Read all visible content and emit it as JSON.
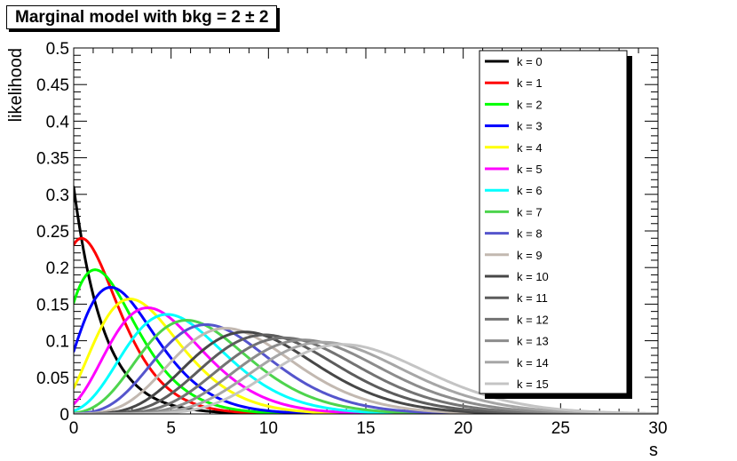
{
  "title": "Marginal model with bkg = 2 ± 2",
  "chart_data": {
    "type": "line",
    "title": "Marginal model with bkg = 2 ± 2",
    "xlabel": "s",
    "ylabel": "likelihood",
    "xlim": [
      0,
      30
    ],
    "ylim": [
      0,
      0.5
    ],
    "x_major_ticks": [
      0,
      5,
      10,
      15,
      20,
      25,
      30
    ],
    "y_major_ticks": [
      0,
      0.05,
      0.1,
      0.15,
      0.2,
      0.25,
      0.3,
      0.35,
      0.4,
      0.45,
      0.5
    ],
    "x_tick_labels": [
      "0",
      "5",
      "10",
      "15",
      "20",
      "25",
      "30"
    ],
    "y_tick_labels": [
      "0",
      "0.05",
      "0.1",
      "0.15",
      "0.2",
      "0.25",
      "0.3",
      "0.35",
      "0.4",
      "0.45",
      "0.5"
    ],
    "legend_position": "top-right",
    "model": {
      "bkg_mean": 2,
      "bkg_sigma": 2
    },
    "series": [
      {
        "name": "k = 0",
        "k": 0,
        "color": "#000000",
        "peak_s": 0.0,
        "peak_likelihood": 0.31
      },
      {
        "name": "k = 1",
        "k": 1,
        "color": "#ff0000",
        "peak_s": 0.4,
        "peak_likelihood": 0.24
      },
      {
        "name": "k = 2",
        "k": 2,
        "color": "#00ff00",
        "peak_s": 1.1,
        "peak_likelihood": 0.197
      },
      {
        "name": "k = 3",
        "k": 3,
        "color": "#0000ff",
        "peak_s": 1.9,
        "peak_likelihood": 0.173
      },
      {
        "name": "k = 4",
        "k": 4,
        "color": "#ffff00",
        "peak_s": 2.9,
        "peak_likelihood": 0.157
      },
      {
        "name": "k = 5",
        "k": 5,
        "color": "#ff00ff",
        "peak_s": 3.8,
        "peak_likelihood": 0.145
      },
      {
        "name": "k = 6",
        "k": 6,
        "color": "#00ffff",
        "peak_s": 4.8,
        "peak_likelihood": 0.136
      },
      {
        "name": "k = 7",
        "k": 7,
        "color": "#4dd44d",
        "peak_s": 5.8,
        "peak_likelihood": 0.128
      },
      {
        "name": "k = 8",
        "k": 8,
        "color": "#5555cc",
        "peak_s": 6.8,
        "peak_likelihood": 0.122
      },
      {
        "name": "k = 9",
        "k": 9,
        "color": "#c2b8b0",
        "peak_s": 7.8,
        "peak_likelihood": 0.117
      },
      {
        "name": "k = 10",
        "k": 10,
        "color": "#474747",
        "peak_s": 8.8,
        "peak_likelihood": 0.112
      },
      {
        "name": "k = 11",
        "k": 11,
        "color": "#5c5c5c",
        "peak_s": 9.8,
        "peak_likelihood": 0.108
      },
      {
        "name": "k = 12",
        "k": 12,
        "color": "#737373",
        "peak_s": 10.8,
        "peak_likelihood": 0.104
      },
      {
        "name": "k = 13",
        "k": 13,
        "color": "#8c8c8c",
        "peak_s": 11.8,
        "peak_likelihood": 0.101
      },
      {
        "name": "k = 14",
        "k": 14,
        "color": "#a6a6a6",
        "peak_s": 12.8,
        "peak_likelihood": 0.098
      },
      {
        "name": "k = 15",
        "k": 15,
        "color": "#c4c4c4",
        "peak_s": 13.8,
        "peak_likelihood": 0.095
      }
    ]
  }
}
